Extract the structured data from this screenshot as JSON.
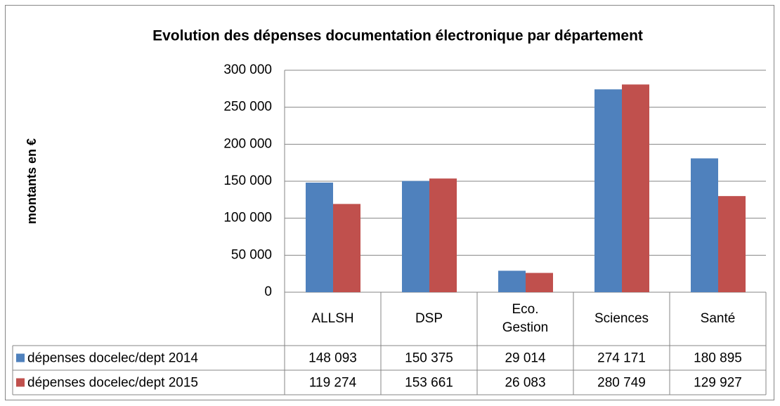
{
  "chart_data": {
    "type": "bar",
    "title": "Evolution des dépenses documentation électronique par département",
    "y_label": "montants en €",
    "categories": [
      "ALLSH",
      "DSP",
      "Eco. Gestion",
      "Sciences",
      "Santé"
    ],
    "series": [
      {
        "name": "dépenses docelec/dept 2014",
        "color": "#4f81bd",
        "values": [
          148093,
          150375,
          29014,
          274171,
          180895
        ],
        "value_labels": [
          "148 093",
          "150 375",
          "29 014",
          "274 171",
          "180 895"
        ]
      },
      {
        "name": "dépenses docelec/dept 2015",
        "color": "#c0504d",
        "values": [
          119274,
          153661,
          26083,
          280749,
          129927
        ],
        "value_labels": [
          "119 274",
          "153 661",
          "26 083",
          "280 749",
          "129 927"
        ]
      }
    ],
    "ylim": [
      0,
      300000
    ],
    "yticks": [
      0,
      {
        "value": 50000,
        "label": "50 000"
      },
      {
        "value": 100000,
        "label": "100 000"
      },
      {
        "value": 150000,
        "label": "150 000"
      },
      {
        "value": 200000,
        "label": "200 000"
      },
      {
        "value": 250000,
        "label": "250 000"
      },
      {
        "value": 300000,
        "label": "300 000"
      }
    ],
    "grid": true
  }
}
